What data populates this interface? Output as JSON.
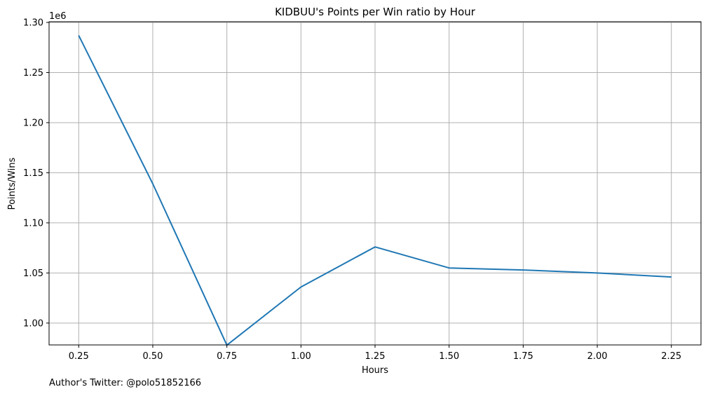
{
  "chart_data": {
    "type": "line",
    "title": "KIDBUU's Points per Win ratio by Hour",
    "xlabel": "Hours",
    "ylabel": "Points/Wins",
    "y_offset_label": "1e6",
    "x_ticks": [
      "0.25",
      "0.50",
      "0.75",
      "1.00",
      "1.25",
      "1.50",
      "1.75",
      "2.00",
      "2.25"
    ],
    "y_ticks": [
      "1.00",
      "1.05",
      "1.10",
      "1.15",
      "1.20",
      "1.25",
      "1.30"
    ],
    "xlim": [
      0.15,
      2.35
    ],
    "ylim": [
      0.9782,
      1.3007
    ],
    "grid": true,
    "series": [
      {
        "color": "#1f77b4",
        "x": [
          0.25,
          0.5,
          0.75,
          1.0,
          1.25,
          1.5,
          1.75,
          2.0,
          2.25
        ],
        "y": [
          1.287,
          1.139,
          0.978,
          1.036,
          1.076,
          1.055,
          1.053,
          1.05,
          1.046
        ]
      }
    ]
  },
  "footer": "Author's Twitter: @polo51852166"
}
